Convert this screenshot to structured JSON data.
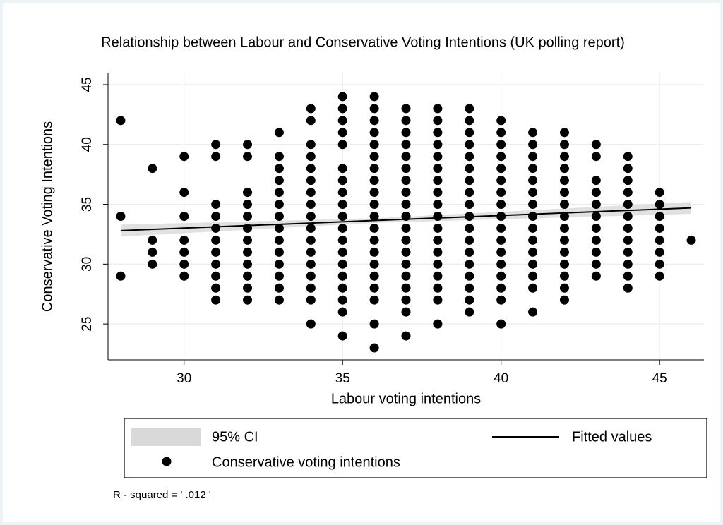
{
  "chart_data": {
    "type": "scatter",
    "title": "Relationship between Labour and Conservative Voting Intentions (UK polling report)",
    "x_label": "Labour voting intentions",
    "y_label": "Conservative Voting Intentions",
    "xlim": [
      27.6,
      46.4
    ],
    "ylim": [
      22,
      46
    ],
    "xticks": [
      30,
      35,
      40,
      45
    ],
    "yticks": [
      25,
      30,
      35,
      40,
      45
    ],
    "grid": true,
    "note": "R - squared = ' .012 '",
    "series": [
      {
        "name": "95% CI",
        "type": "band",
        "color": "#d9d9d9",
        "x": [
          28,
          36,
          46
        ],
        "lower": [
          32.3,
          33.45,
          34.2
        ],
        "upper": [
          33.3,
          33.83,
          35.2
        ]
      },
      {
        "name": "Fitted values",
        "type": "line",
        "color": "#000000",
        "x": [
          28,
          46
        ],
        "values": [
          32.8,
          34.7
        ]
      },
      {
        "name": "Conservative voting intentions",
        "type": "scatter",
        "color": "#000000",
        "x": [
          28,
          28,
          28,
          29,
          29,
          29,
          29,
          30,
          30,
          30,
          30,
          30,
          30,
          30,
          31,
          31,
          31,
          31,
          31,
          31,
          31,
          31,
          31,
          31,
          31,
          32,
          32,
          32,
          32,
          32,
          32,
          32,
          32,
          32,
          32,
          32,
          32,
          33,
          33,
          33,
          33,
          33,
          33,
          33,
          33,
          33,
          33,
          33,
          33,
          33,
          33,
          34,
          34,
          34,
          34,
          34,
          34,
          34,
          34,
          34,
          34,
          34,
          34,
          34,
          34,
          34,
          34,
          34,
          35,
          35,
          35,
          35,
          35,
          35,
          35,
          35,
          35,
          35,
          35,
          35,
          35,
          35,
          35,
          35,
          35,
          35,
          35,
          36,
          36,
          36,
          36,
          36,
          36,
          36,
          36,
          36,
          36,
          36,
          36,
          36,
          36,
          36,
          36,
          36,
          36,
          36,
          36,
          37,
          37,
          37,
          37,
          37,
          37,
          37,
          37,
          37,
          37,
          37,
          37,
          37,
          37,
          37,
          37,
          37,
          37,
          37,
          38,
          38,
          38,
          38,
          38,
          38,
          38,
          38,
          38,
          38,
          38,
          38,
          38,
          38,
          38,
          38,
          38,
          38,
          39,
          39,
          39,
          39,
          39,
          39,
          39,
          39,
          39,
          39,
          39,
          39,
          39,
          39,
          39,
          39,
          39,
          39,
          40,
          40,
          40,
          40,
          40,
          40,
          40,
          40,
          40,
          40,
          40,
          40,
          40,
          40,
          40,
          40,
          40,
          41,
          41,
          41,
          41,
          41,
          41,
          41,
          41,
          41,
          41,
          41,
          41,
          41,
          41,
          41,
          42,
          42,
          42,
          42,
          42,
          42,
          42,
          42,
          42,
          42,
          42,
          42,
          42,
          42,
          42,
          43,
          43,
          43,
          43,
          43,
          43,
          43,
          43,
          43,
          43,
          43,
          44,
          44,
          44,
          44,
          44,
          44,
          44,
          44,
          44,
          44,
          44,
          44,
          45,
          45,
          45,
          45,
          45,
          45,
          45,
          45,
          46
        ],
        "values": [
          42,
          34,
          29,
          38,
          32,
          31,
          30,
          39,
          36,
          34,
          32,
          31,
          30,
          29,
          40,
          39,
          35,
          34,
          33,
          32,
          31,
          30,
          29,
          28,
          27,
          40,
          39,
          36,
          35,
          34,
          33,
          32,
          31,
          30,
          29,
          28,
          27,
          41,
          39,
          38,
          37,
          36,
          35,
          34,
          33,
          32,
          31,
          30,
          29,
          28,
          27,
          43,
          42,
          40,
          39,
          38,
          37,
          36,
          35,
          34,
          33,
          32,
          31,
          30,
          29,
          28,
          27,
          25,
          44,
          43,
          42,
          41,
          40,
          38,
          37,
          36,
          35,
          34,
          33,
          32,
          31,
          30,
          29,
          28,
          27,
          26,
          24,
          44,
          43,
          42,
          41,
          40,
          39,
          38,
          37,
          36,
          35,
          34,
          33,
          32,
          31,
          30,
          29,
          28,
          27,
          25,
          23,
          43,
          42,
          41,
          40,
          39,
          38,
          37,
          36,
          35,
          34,
          33,
          32,
          31,
          30,
          29,
          28,
          27,
          26,
          24,
          43,
          42,
          41,
          40,
          39,
          38,
          37,
          36,
          35,
          34,
          33,
          32,
          31,
          30,
          29,
          28,
          27,
          25,
          43,
          42,
          41,
          40,
          39,
          38,
          37,
          36,
          35,
          34,
          33,
          32,
          31,
          30,
          29,
          28,
          27,
          26,
          42,
          41,
          40,
          39,
          38,
          37,
          36,
          35,
          34,
          33,
          32,
          31,
          30,
          29,
          28,
          27,
          25,
          41,
          40,
          39,
          38,
          37,
          36,
          35,
          34,
          33,
          32,
          31,
          30,
          29,
          28,
          26,
          41,
          40,
          39,
          38,
          37,
          36,
          35,
          34,
          33,
          32,
          31,
          30,
          29,
          28,
          27,
          40,
          39,
          37,
          36,
          35,
          34,
          33,
          32,
          31,
          30,
          29,
          39,
          38,
          37,
          36,
          35,
          34,
          33,
          32,
          31,
          30,
          29,
          28,
          36,
          35,
          34,
          33,
          32,
          31,
          30,
          29,
          32
        ]
      }
    ]
  }
}
